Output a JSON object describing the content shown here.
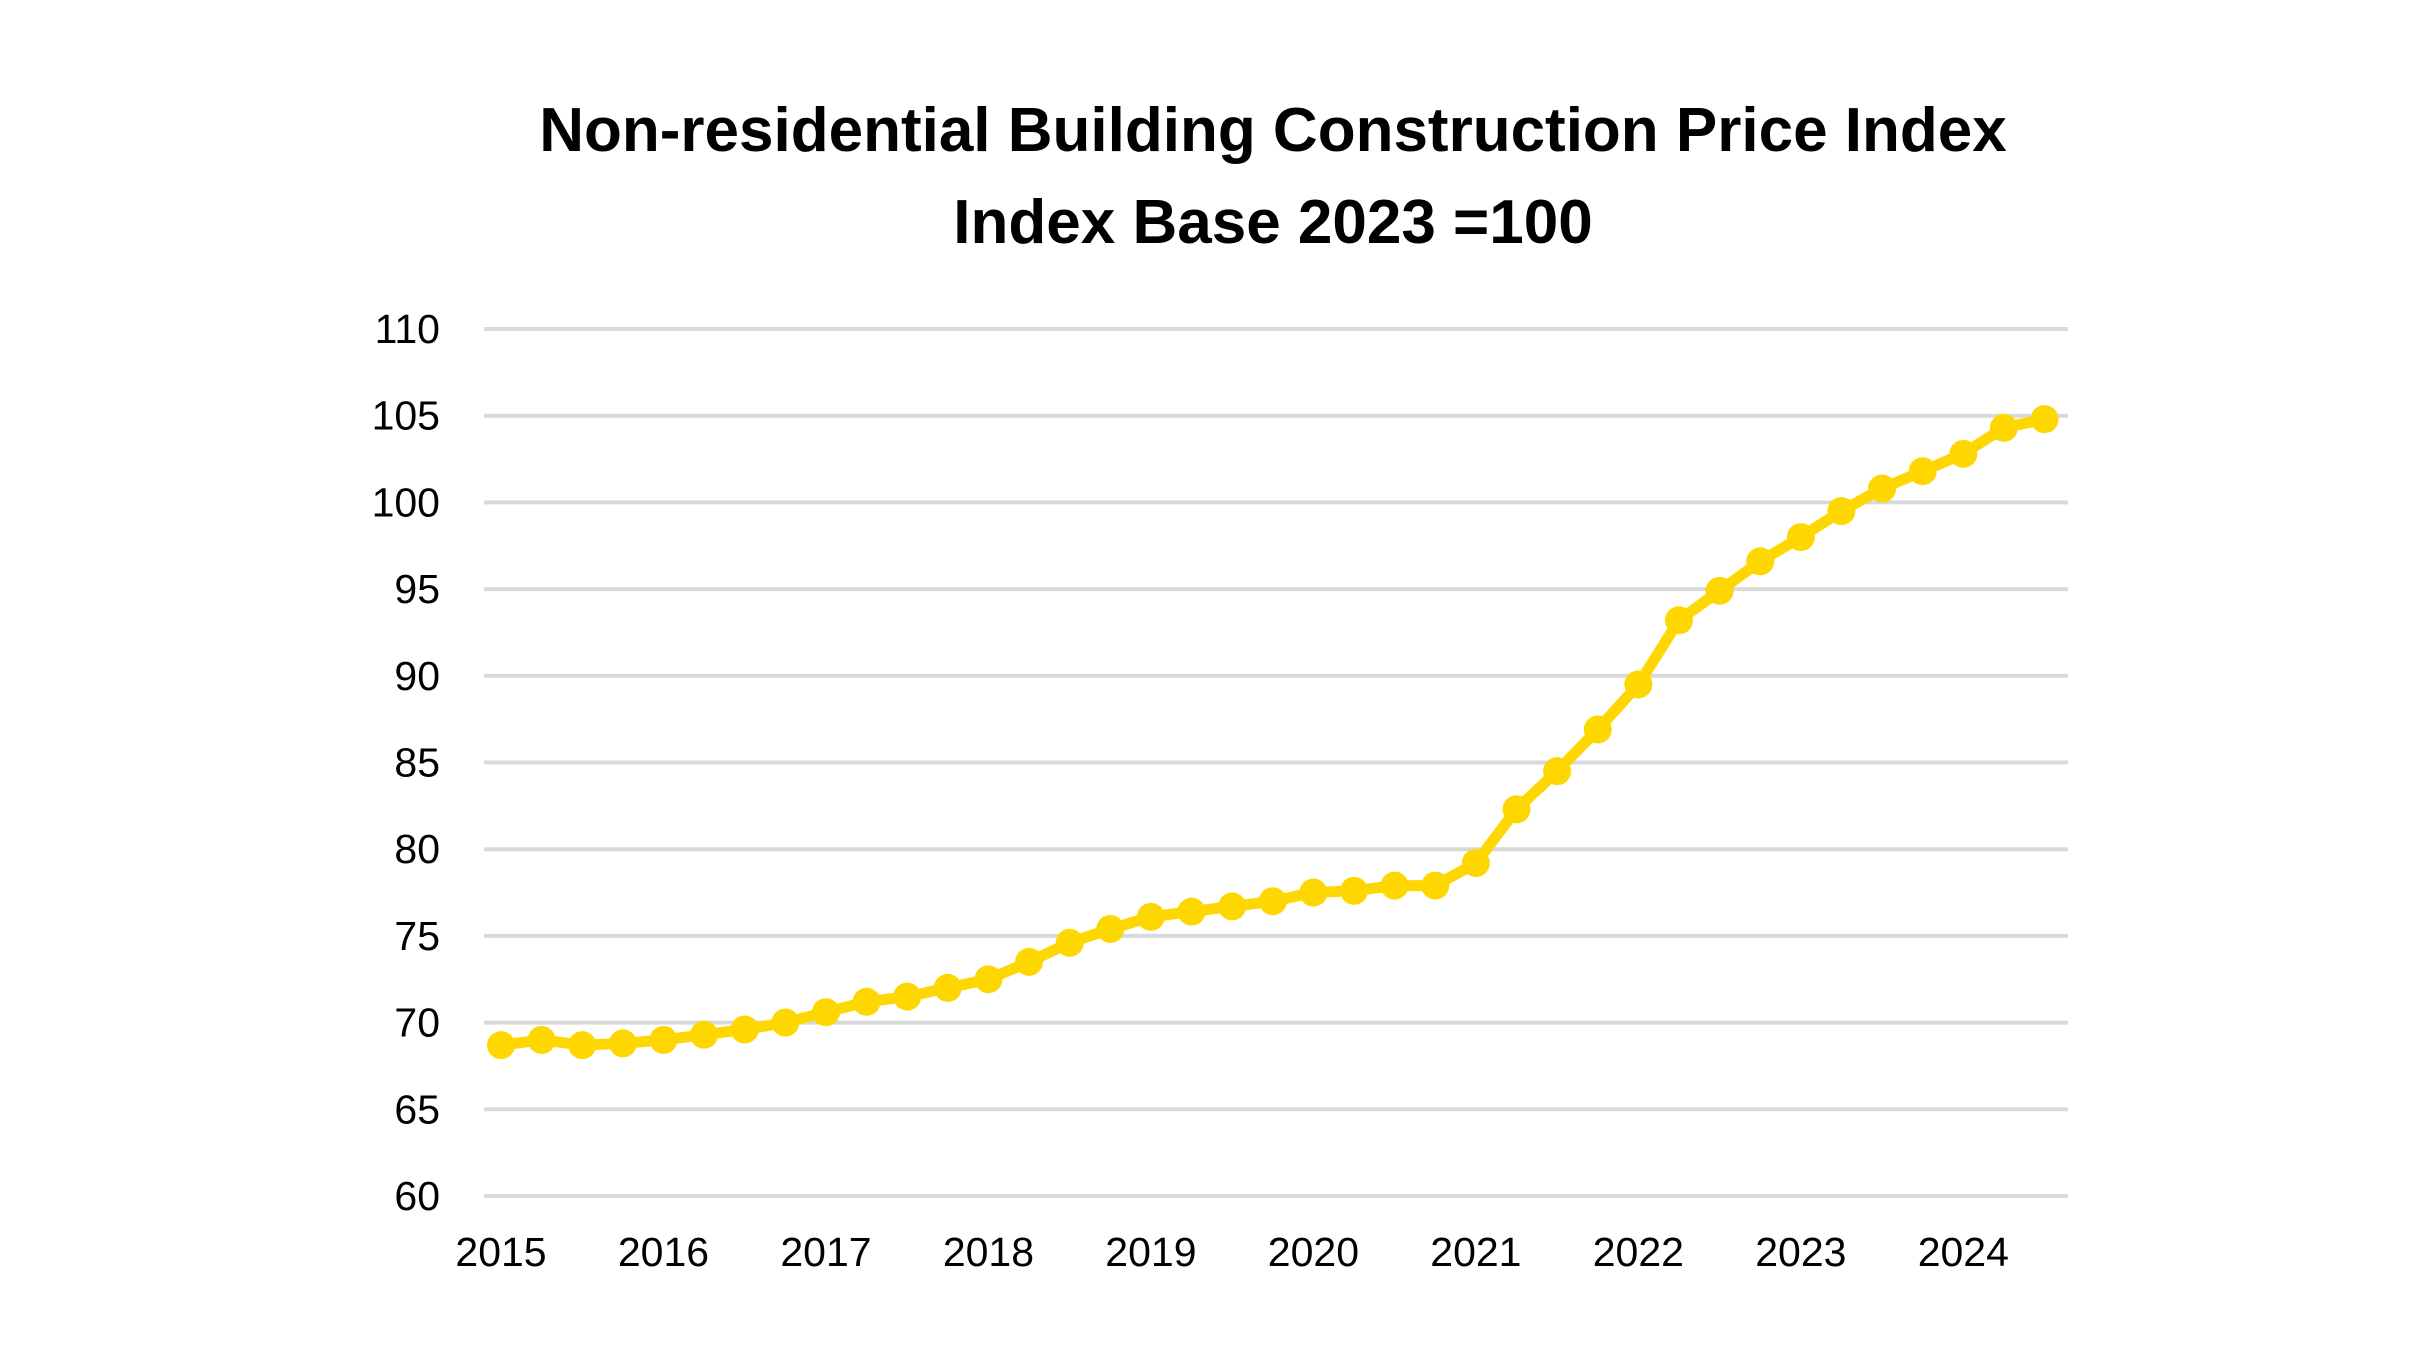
{
  "chart_data": {
    "type": "line",
    "title": "Non-residential Building Construction Price Index",
    "subtitle": "Index Base 2023 =100",
    "xlabel": "",
    "ylabel": "",
    "ylim": [
      60,
      110
    ],
    "yticks": [
      "60",
      "65",
      "70",
      "75",
      "80",
      "85",
      "90",
      "95",
      "100",
      "105",
      "110"
    ],
    "xtick_labels": [
      "2015",
      "2016",
      "2017",
      "2018",
      "2019",
      "2020",
      "2021",
      "2022",
      "2023",
      "2024"
    ],
    "grid": true,
    "legend": "none",
    "x": [
      "2015 Q1",
      "2015 Q2",
      "2015 Q3",
      "2015 Q4",
      "2016 Q1",
      "2016 Q2",
      "2016 Q3",
      "2016 Q4",
      "2017 Q1",
      "2017 Q2",
      "2017 Q3",
      "2017 Q4",
      "2018 Q1",
      "2018 Q2",
      "2018 Q3",
      "2018 Q4",
      "2019 Q1",
      "2019 Q2",
      "2019 Q3",
      "2019 Q4",
      "2020 Q1",
      "2020 Q2",
      "2020 Q3",
      "2020 Q4",
      "2021 Q1",
      "2021 Q2",
      "2021 Q3",
      "2021 Q4",
      "2022 Q1",
      "2022 Q2",
      "2022 Q3",
      "2022 Q4",
      "2023 Q1",
      "2023 Q2",
      "2023 Q3",
      "2023 Q4",
      "2024 Q1",
      "2024 Q2",
      "2024 Q3"
    ],
    "series": [
      {
        "name": "Non-residential Building Construction Price Index",
        "color": "#FFD700",
        "values": [
          68.7,
          69.0,
          68.7,
          68.8,
          69.0,
          69.3,
          69.6,
          70.0,
          70.6,
          71.2,
          71.5,
          72.0,
          72.5,
          73.5,
          74.6,
          75.4,
          76.1,
          76.4,
          76.7,
          77.0,
          77.5,
          77.6,
          77.9,
          77.9,
          79.2,
          82.3,
          84.5,
          86.9,
          89.5,
          93.2,
          94.9,
          96.6,
          98.0,
          99.5,
          100.8,
          101.8,
          102.8,
          104.3,
          104.8
        ]
      }
    ]
  }
}
